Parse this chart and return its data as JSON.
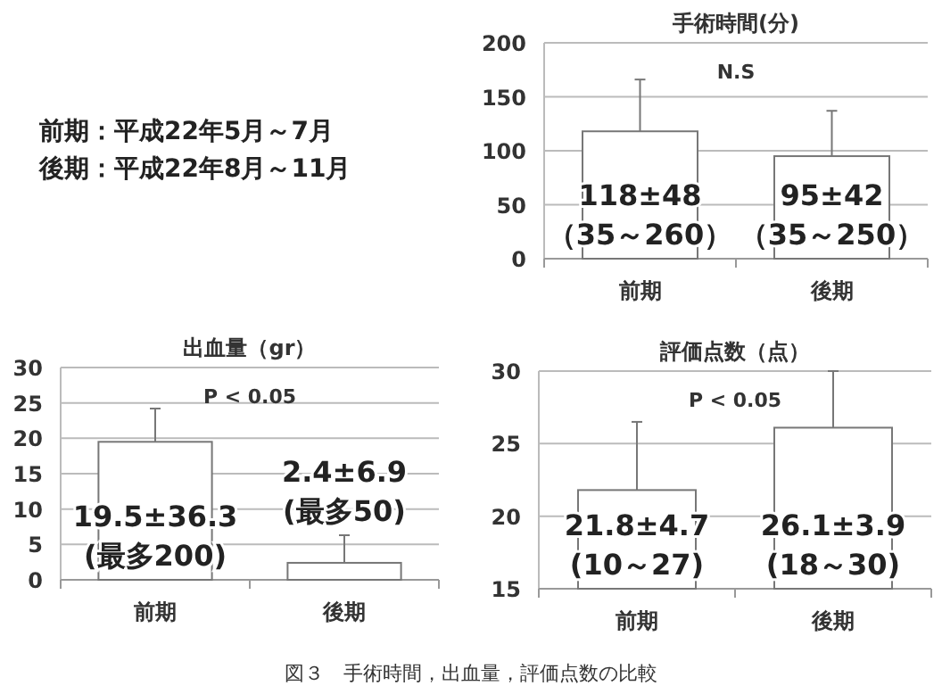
{
  "chart_data": [
    {
      "type": "other",
      "annotations": [
        "前期：平成22年5月～7月",
        "後期：平成22年8月～11月",
        "図３　手術時間，出血量，評価点数の比較"
      ]
    },
    {
      "type": "bar",
      "title": "手術時間(分)",
      "categories": [
        "前期",
        "後期"
      ],
      "values": [
        118,
        95
      ],
      "errors": [
        [
          118,
          166
        ],
        [
          95,
          137
        ]
      ],
      "value_labels": [
        "118±48\n（35～260）",
        "95±42\n（35～250）"
      ],
      "color": "#ffffff",
      "ylim": [
        0,
        200
      ],
      "yticks": [
        0,
        50,
        100,
        150,
        200
      ],
      "grid": "y",
      "annotations": [
        "N.S"
      ]
    },
    {
      "type": "bar",
      "title": "出血量（gr）",
      "categories": [
        "前期",
        "後期"
      ],
      "values": [
        19.5,
        2.4
      ],
      "errors": [
        [
          19.5,
          24.2
        ],
        [
          2.4,
          6.3
        ]
      ],
      "value_labels": [
        "19.5±36.3\n(最多200)",
        "2.4±6.9\n(最多50)"
      ],
      "color": "#ffffff",
      "ylim": [
        0,
        30
      ],
      "yticks": [
        0,
        5,
        10,
        15,
        20,
        25,
        30
      ],
      "grid": "y",
      "annotations": [
        "P < 0.05"
      ]
    },
    {
      "type": "bar",
      "title": "評価点数（点）",
      "categories": [
        "前期",
        "後期"
      ],
      "values": [
        21.8,
        26.1
      ],
      "errors": [
        [
          21.8,
          26.5
        ],
        [
          26.1,
          30
        ]
      ],
      "value_labels": [
        "21.8±4.7\n(10～27)",
        "26.1±3.9\n(18～30)"
      ],
      "color": "#ffffff",
      "ylim": [
        15,
        30
      ],
      "yticks": [
        15,
        20,
        25,
        30
      ],
      "grid": "y",
      "annotations": [
        "P < 0.05"
      ]
    }
  ]
}
